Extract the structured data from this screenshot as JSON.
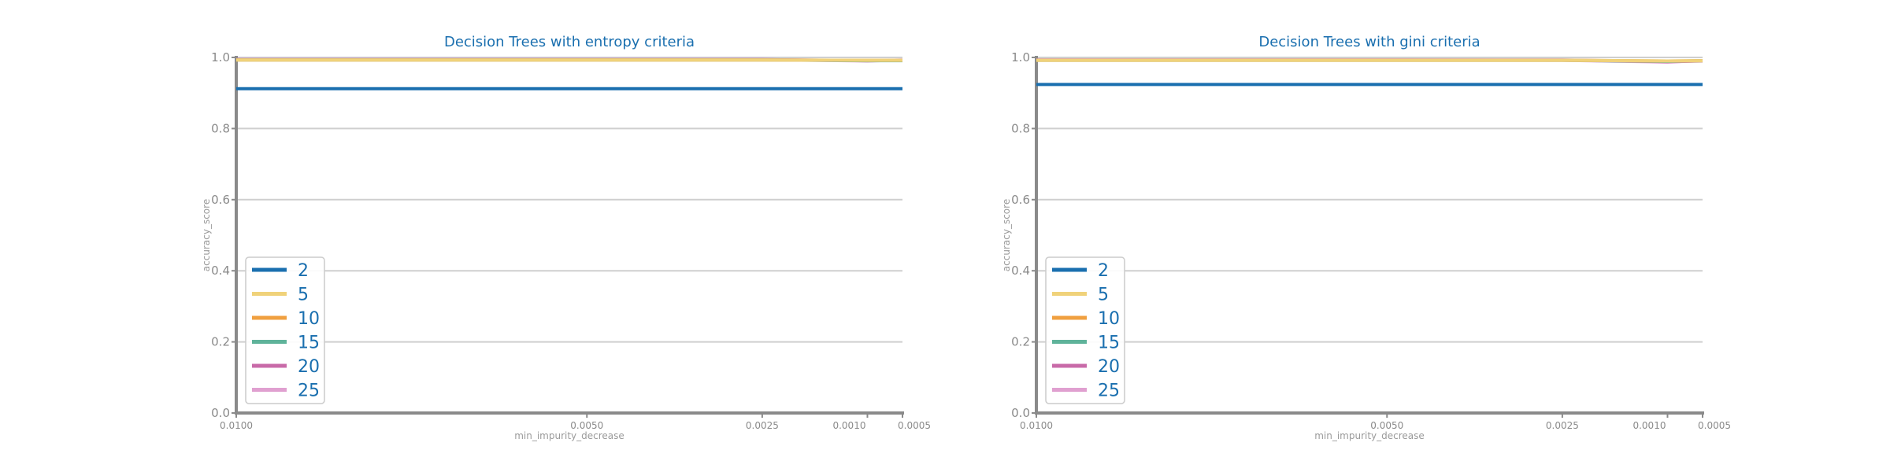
{
  "chart_data": [
    {
      "type": "line",
      "title": "Decision Trees with entropy criteria",
      "xlabel": "min_impurity_decrease",
      "ylabel": "accuracy_score",
      "x_ticks": [
        "0.0100",
        "0.0050",
        "0.0025",
        "0.0010",
        "0.0005"
      ],
      "x_tick_values": [
        0.01,
        0.005,
        0.0025,
        0.001,
        0.0005
      ],
      "x_reversed": true,
      "xlim": [
        0.01,
        0.0005
      ],
      "y_ticks": [
        "0.0",
        "0.2",
        "0.4",
        "0.6",
        "0.8",
        "1.0"
      ],
      "ylim": [
        0,
        1
      ],
      "grid": "horizontal",
      "legend_position": "lower-left",
      "x": [
        0.01,
        0.005,
        0.0025,
        0.001,
        0.0005
      ],
      "series": [
        {
          "name": "2",
          "color": "#1a6faf",
          "values": [
            0.912,
            0.912,
            0.912,
            0.912,
            0.912
          ]
        },
        {
          "name": "5",
          "color": "#f0d27a",
          "values": [
            0.993,
            0.993,
            0.993,
            0.992,
            0.992
          ]
        },
        {
          "name": "10",
          "color": "#f0a040",
          "values": [
            0.993,
            0.993,
            0.993,
            0.992,
            0.992
          ]
        },
        {
          "name": "15",
          "color": "#5fb39a",
          "values": [
            0.993,
            0.993,
            0.993,
            0.991,
            0.991
          ]
        },
        {
          "name": "20",
          "color": "#c86aa8",
          "values": [
            0.994,
            0.994,
            0.994,
            0.991,
            0.992
          ]
        },
        {
          "name": "25",
          "color": "#e0a0d0",
          "values": [
            0.994,
            0.994,
            0.994,
            0.99,
            0.993
          ]
        }
      ]
    },
    {
      "type": "line",
      "title": "Decision Trees with gini criteria",
      "xlabel": "min_impurity_decrease",
      "ylabel": "accuracy_score",
      "x_ticks": [
        "0.0100",
        "0.0050",
        "0.0025",
        "0.0010",
        "0.0005"
      ],
      "x_tick_values": [
        0.01,
        0.005,
        0.0025,
        0.001,
        0.0005
      ],
      "x_reversed": true,
      "xlim": [
        0.01,
        0.0005
      ],
      "y_ticks": [
        "0.0",
        "0.2",
        "0.4",
        "0.6",
        "0.8",
        "1.0"
      ],
      "ylim": [
        0,
        1
      ],
      "grid": "horizontal",
      "legend_position": "lower-left",
      "x": [
        0.01,
        0.005,
        0.0025,
        0.001,
        0.0005
      ],
      "series": [
        {
          "name": "2",
          "color": "#1a6faf",
          "values": [
            0.924,
            0.924,
            0.924,
            0.924,
            0.924
          ]
        },
        {
          "name": "5",
          "color": "#f0d27a",
          "values": [
            0.992,
            0.992,
            0.992,
            0.99,
            0.991
          ]
        },
        {
          "name": "10",
          "color": "#f0a040",
          "values": [
            0.992,
            0.992,
            0.992,
            0.99,
            0.991
          ]
        },
        {
          "name": "15",
          "color": "#5fb39a",
          "values": [
            0.992,
            0.992,
            0.992,
            0.989,
            0.991
          ]
        },
        {
          "name": "20",
          "color": "#c86aa8",
          "values": [
            0.993,
            0.993,
            0.993,
            0.988,
            0.99
          ]
        },
        {
          "name": "25",
          "color": "#e0a0d0",
          "values": [
            0.993,
            0.993,
            0.992,
            0.987,
            0.991
          ]
        }
      ]
    }
  ]
}
